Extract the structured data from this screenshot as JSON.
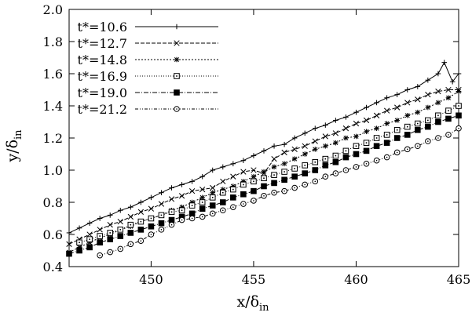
{
  "chart_data": {
    "type": "line",
    "xlabel": {
      "main": "x/δ",
      "sub": "in"
    },
    "ylabel": {
      "main": "y/δ",
      "sub": "in"
    },
    "xlim": [
      446,
      465
    ],
    "ylim": [
      0.4,
      2.0
    ],
    "xticks": [
      450,
      455,
      460,
      465
    ],
    "yticks": [
      0.4,
      0.6,
      0.8,
      1.0,
      1.2,
      1.4,
      1.6,
      1.8,
      2.0
    ],
    "ytick_labels": [
      "0.4",
      "0.6",
      "0.8",
      "1.0",
      "1.2",
      "1.4",
      "1.6",
      "1.8",
      "2.0"
    ],
    "grid": false,
    "legend_position": "top-left",
    "series": [
      {
        "name": "t*=10.6",
        "marker": "plus",
        "dash": "",
        "x": [
          446.0,
          446.5,
          447.0,
          447.5,
          448.0,
          448.5,
          449.0,
          449.5,
          450.0,
          450.5,
          451.0,
          451.5,
          452.0,
          452.5,
          453.0,
          453.5,
          454.0,
          454.5,
          455.0,
          455.5,
          456.0,
          456.5,
          457.0,
          457.5,
          458.0,
          458.5,
          459.0,
          459.5,
          460.0,
          460.5,
          461.0,
          461.5,
          462.0,
          462.5,
          463.0,
          463.5,
          464.0,
          464.3,
          464.7,
          465.0
        ],
        "y": [
          0.61,
          0.64,
          0.67,
          0.7,
          0.72,
          0.75,
          0.77,
          0.8,
          0.83,
          0.86,
          0.89,
          0.91,
          0.93,
          0.96,
          1.0,
          1.02,
          1.04,
          1.06,
          1.09,
          1.12,
          1.15,
          1.16,
          1.2,
          1.23,
          1.26,
          1.28,
          1.31,
          1.33,
          1.36,
          1.39,
          1.42,
          1.45,
          1.47,
          1.5,
          1.52,
          1.56,
          1.6,
          1.67,
          1.55,
          1.6
        ]
      },
      {
        "name": "t*=12.7",
        "marker": "x",
        "dash": "5,2",
        "x": [
          446.0,
          446.5,
          447.0,
          447.5,
          448.0,
          448.5,
          449.0,
          449.5,
          450.0,
          450.5,
          451.0,
          451.5,
          452.0,
          452.5,
          453.0,
          453.5,
          454.0,
          454.5,
          455.0,
          455.5,
          456.0,
          456.5,
          457.0,
          457.5,
          458.0,
          458.5,
          459.0,
          459.5,
          460.0,
          460.5,
          461.0,
          461.5,
          462.0,
          462.5,
          463.0,
          463.5,
          464.0,
          464.5,
          465.0
        ],
        "y": [
          0.54,
          0.57,
          0.6,
          0.63,
          0.66,
          0.68,
          0.71,
          0.74,
          0.76,
          0.79,
          0.82,
          0.84,
          0.87,
          0.88,
          0.89,
          0.93,
          0.96,
          0.99,
          1.0,
          0.98,
          1.07,
          1.11,
          1.13,
          1.15,
          1.18,
          1.21,
          1.23,
          1.26,
          1.29,
          1.31,
          1.34,
          1.37,
          1.39,
          1.42,
          1.44,
          1.47,
          1.49,
          1.5,
          1.5
        ]
      },
      {
        "name": "t*=14.8",
        "marker": "asterisk",
        "dash": "2,2",
        "x": [
          446.0,
          446.5,
          447.0,
          447.5,
          448.0,
          448.5,
          449.0,
          449.5,
          450.0,
          450.5,
          451.0,
          451.5,
          452.0,
          452.5,
          453.0,
          453.5,
          454.0,
          454.5,
          455.0,
          455.5,
          456.0,
          456.5,
          457.0,
          457.5,
          458.0,
          458.5,
          459.0,
          459.5,
          460.0,
          460.5,
          461.0,
          461.5,
          462.0,
          462.5,
          463.0,
          463.5,
          464.0,
          464.5,
          465.0
        ],
        "y": [
          0.49,
          0.52,
          0.55,
          0.58,
          0.6,
          0.63,
          0.65,
          0.68,
          0.7,
          0.72,
          0.75,
          0.77,
          0.8,
          0.83,
          0.86,
          0.88,
          0.9,
          0.93,
          0.96,
          0.99,
          1.02,
          1.04,
          1.07,
          1.1,
          1.13,
          1.15,
          1.17,
          1.2,
          1.21,
          1.24,
          1.26,
          1.29,
          1.31,
          1.34,
          1.36,
          1.39,
          1.42,
          1.45,
          1.49
        ]
      },
      {
        "name": "t*=16.9",
        "marker": "square-dot",
        "dash": "1,2",
        "x": [
          446.5,
          447.0,
          447.5,
          448.0,
          448.5,
          449.0,
          449.5,
          450.0,
          450.5,
          451.0,
          451.5,
          452.0,
          452.5,
          453.0,
          453.5,
          454.0,
          454.5,
          455.0,
          455.5,
          456.0,
          456.5,
          457.0,
          457.5,
          458.0,
          458.5,
          459.0,
          459.5,
          460.0,
          460.5,
          461.0,
          461.5,
          462.0,
          462.5,
          463.0,
          463.5,
          464.0,
          464.5,
          465.0
        ],
        "y": [
          0.55,
          0.57,
          0.59,
          0.61,
          0.63,
          0.66,
          0.68,
          0.7,
          0.72,
          0.74,
          0.75,
          0.78,
          0.8,
          0.83,
          0.86,
          0.88,
          0.91,
          0.93,
          0.95,
          0.97,
          0.99,
          1.01,
          1.03,
          1.05,
          1.07,
          1.09,
          1.12,
          1.15,
          1.17,
          1.2,
          1.22,
          1.25,
          1.27,
          1.29,
          1.31,
          1.34,
          1.37,
          1.4
        ]
      },
      {
        "name": "t*=19.0",
        "marker": "square-filled",
        "dash": "6,2,1,2",
        "x": [
          446.0,
          446.5,
          447.0,
          447.5,
          448.0,
          448.5,
          449.0,
          449.5,
          450.0,
          450.5,
          451.0,
          451.5,
          452.0,
          452.5,
          453.0,
          453.5,
          454.0,
          454.5,
          455.0,
          455.5,
          456.0,
          456.5,
          457.0,
          457.5,
          458.0,
          458.5,
          459.0,
          459.5,
          460.0,
          460.5,
          461.0,
          461.5,
          462.0,
          462.5,
          463.0,
          463.5,
          464.0,
          464.5,
          465.0
        ],
        "y": [
          0.48,
          0.5,
          0.52,
          0.55,
          0.57,
          0.59,
          0.61,
          0.63,
          0.65,
          0.67,
          0.69,
          0.71,
          0.73,
          0.76,
          0.78,
          0.8,
          0.83,
          0.85,
          0.87,
          0.9,
          0.92,
          0.94,
          0.96,
          0.98,
          1.0,
          1.03,
          1.05,
          1.08,
          1.1,
          1.12,
          1.15,
          1.17,
          1.2,
          1.22,
          1.25,
          1.27,
          1.3,
          1.32,
          1.34
        ]
      },
      {
        "name": "t*=21.2",
        "marker": "circle-dot",
        "dash": "4,2,1,2,1,2",
        "x": [
          447.5,
          448.0,
          448.5,
          449.0,
          449.5,
          450.0,
          450.5,
          451.0,
          451.5,
          452.0,
          452.5,
          453.0,
          453.5,
          454.0,
          454.5,
          455.0,
          455.5,
          456.0,
          456.5,
          457.0,
          457.5,
          458.0,
          458.5,
          459.0,
          459.5,
          460.0,
          460.5,
          461.0,
          461.5,
          462.0,
          462.5,
          463.0,
          463.5,
          464.0,
          464.5,
          465.0
        ],
        "y": [
          0.47,
          0.49,
          0.51,
          0.54,
          0.56,
          0.6,
          0.63,
          0.66,
          0.69,
          0.7,
          0.71,
          0.73,
          0.75,
          0.77,
          0.79,
          0.81,
          0.84,
          0.86,
          0.87,
          0.89,
          0.91,
          0.93,
          0.96,
          0.98,
          1.0,
          1.02,
          1.04,
          1.06,
          1.08,
          1.11,
          1.13,
          1.15,
          1.18,
          1.2,
          1.22,
          1.26
        ]
      }
    ]
  }
}
